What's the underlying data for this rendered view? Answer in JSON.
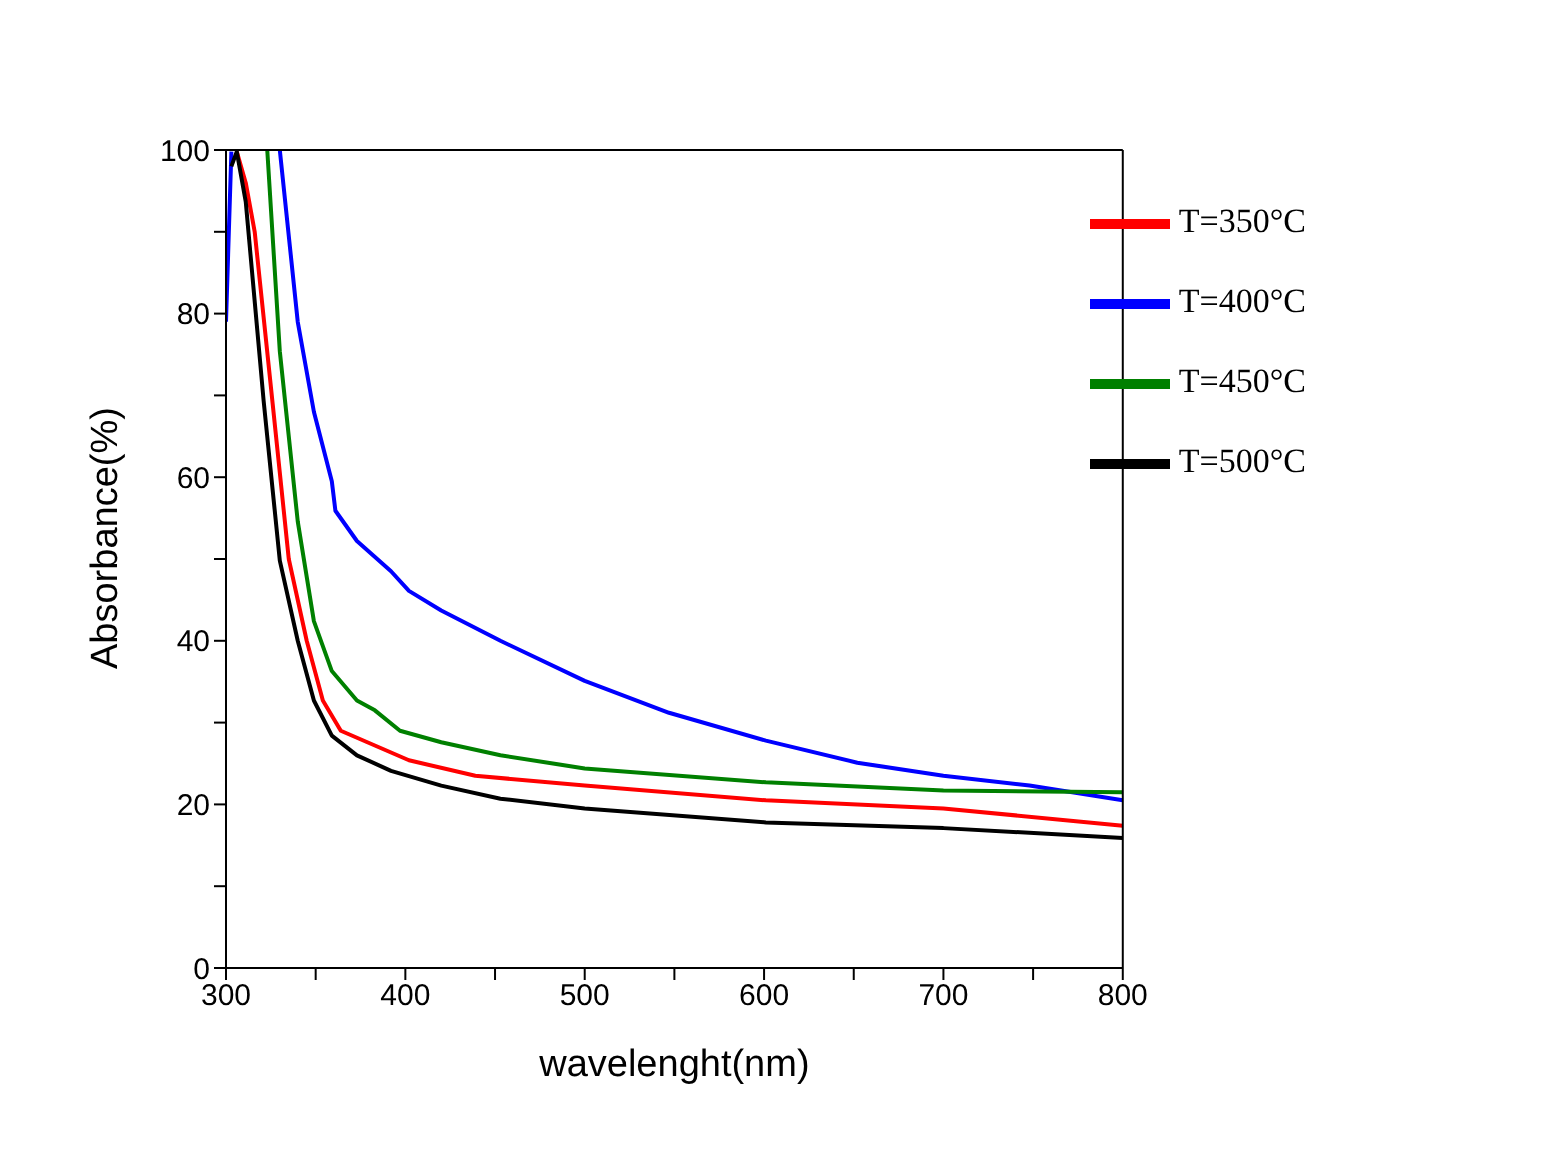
{
  "chart_data": {
    "type": "line",
    "xlabel": "wavelenght(nm)",
    "ylabel": "Absorbance(%)",
    "xlim": [
      300,
      800
    ],
    "ylim": [
      0,
      100
    ],
    "xticks": [
      300,
      {
        "value": 350,
        "label": null
      },
      400,
      {
        "value": 450,
        "label": null
      },
      500,
      {
        "value": 550,
        "label": null
      },
      600,
      {
        "value": 650,
        "label": null
      },
      700,
      {
        "value": 750,
        "label": null
      },
      800
    ],
    "yticks": [
      0,
      {
        "value": 10,
        "label": null
      },
      20,
      {
        "value": 30,
        "label": null
      },
      40,
      {
        "value": 50,
        "label": null
      },
      60,
      {
        "value": 70,
        "label": null
      },
      80,
      {
        "value": 90,
        "label": null
      },
      100
    ],
    "legend": "top right",
    "grid": false,
    "marker": "none",
    "line_style": "solid",
    "series": [
      {
        "name": "T=350°C",
        "color": "#ff0000",
        "x": [
          306,
          311,
          316,
          326,
          335,
          345,
          354,
          364,
          383,
          402,
          439,
          500,
          601,
          700,
          800
        ],
        "values": [
          99.8,
          96,
          90,
          69,
          50,
          40,
          32.7,
          29,
          27.2,
          25.4,
          23.5,
          22.3,
          20.5,
          19.5,
          17.4
        ]
      },
      {
        "name": "T=400°C",
        "color": "#0000ff",
        "x": [
          300,
          303,
          304,
          330,
          340,
          349,
          359,
          361,
          373,
          392,
          402,
          420,
          453,
          500,
          547,
          601,
          652,
          700,
          748,
          800
        ],
        "values": [
          79,
          99.8,
          null,
          100,
          79,
          68,
          59.5,
          55.9,
          52.2,
          48.5,
          46.1,
          43.7,
          40,
          35.1,
          31.2,
          27.8,
          25.1,
          23.5,
          22.3,
          20.5
        ]
      },
      {
        "name": "T=450°C",
        "color": "#008000",
        "x": [
          323,
          330,
          340,
          349,
          359,
          373,
          383,
          397,
          420,
          453,
          500,
          601,
          700,
          800
        ],
        "values": [
          100,
          75.4,
          54.6,
          42.4,
          36.3,
          32.7,
          31.5,
          29,
          27.6,
          26,
          24.4,
          22.7,
          21.7,
          21.5
        ]
      },
      {
        "name": "T=500°C",
        "color": "#000000",
        "x": [
          303,
          306,
          311,
          321,
          330,
          340,
          349,
          359,
          373,
          392,
          420,
          453,
          500,
          601,
          700,
          800
        ],
        "values": [
          98,
          99.8,
          93.7,
          69.3,
          49.8,
          40,
          32.7,
          28.4,
          26,
          24.1,
          22.3,
          20.7,
          19.5,
          17.8,
          17.1,
          15.9
        ]
      }
    ]
  }
}
